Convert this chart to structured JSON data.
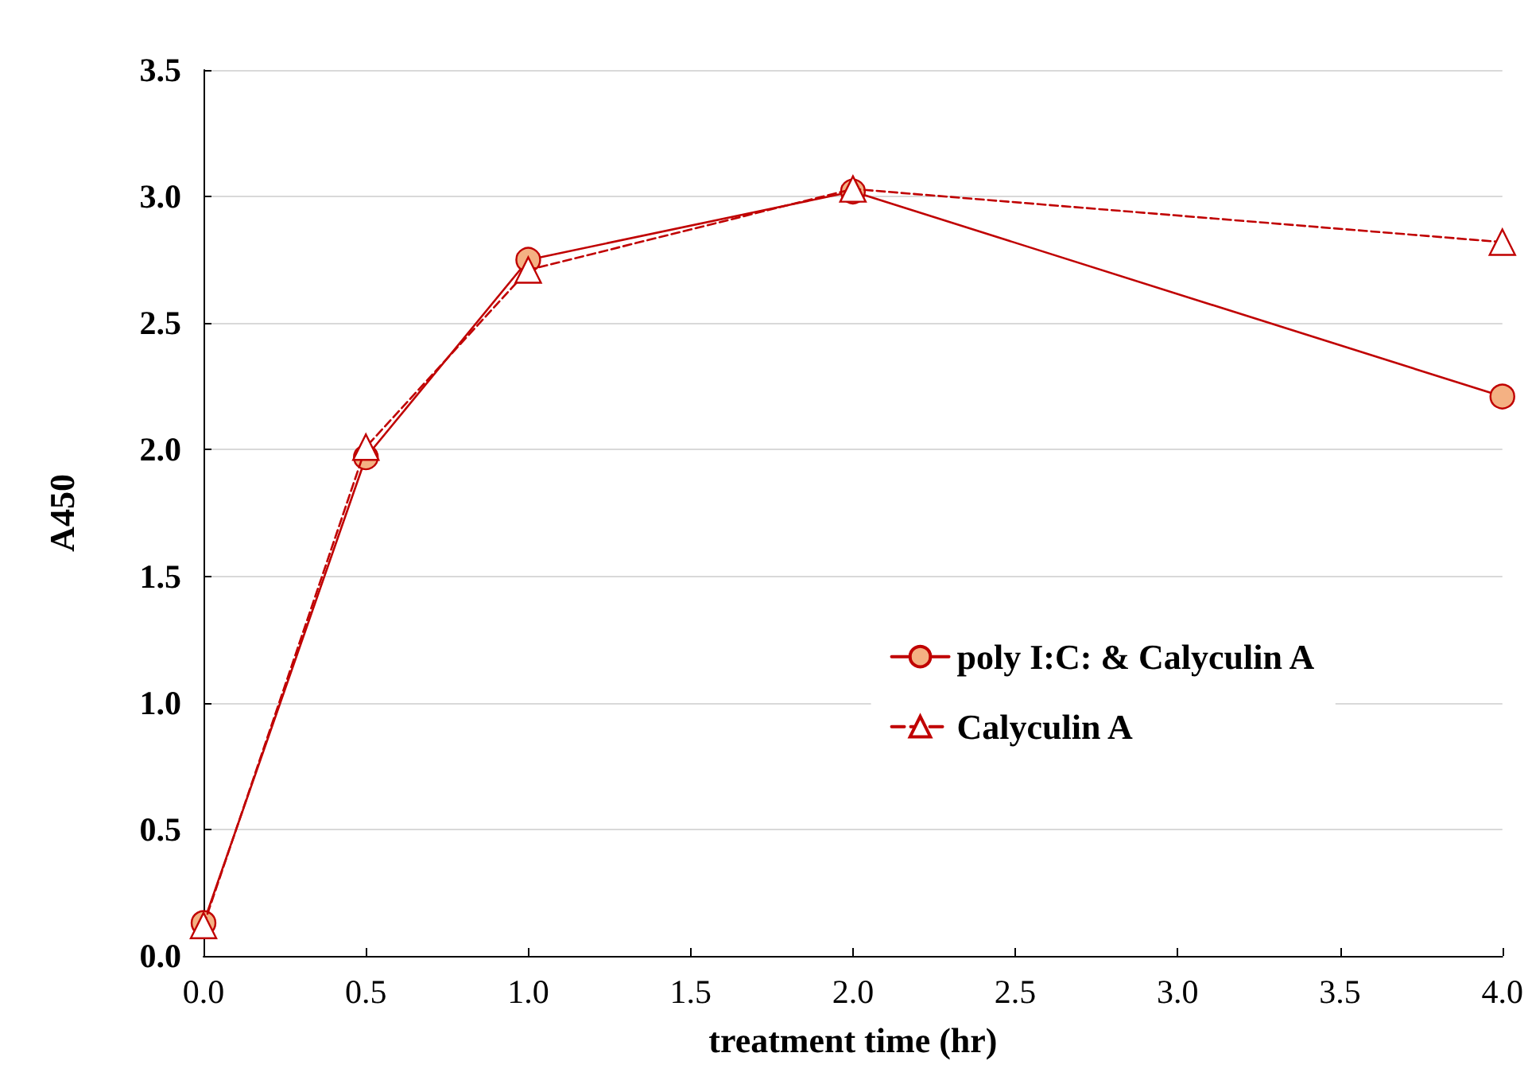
{
  "chart_data": {
    "type": "line",
    "xlabel": "treatment time (hr)",
    "ylabel": "A450",
    "x": [
      0,
      0.5,
      1,
      2,
      4
    ],
    "series": [
      {
        "name": "poly I:C: & Calyculin A",
        "color": "#c00000",
        "marker": "circle",
        "line_style": "solid",
        "values": [
          0.13,
          1.97,
          2.75,
          3.02,
          2.21
        ]
      },
      {
        "name": "Calyculin A",
        "color": "#c00000",
        "marker": "triangle",
        "line_style": "dashed",
        "values": [
          0.12,
          2.01,
          2.71,
          3.03,
          2.82
        ]
      }
    ],
    "xlim": [
      0,
      4
    ],
    "xticks": [
      {
        "value": 0,
        "label": "0.0"
      },
      {
        "value": 0.5,
        "label": "0.5"
      },
      {
        "value": 1,
        "label": "1.0"
      },
      {
        "value": 1.5,
        "label": "1.5"
      },
      {
        "value": 2,
        "label": "2.0"
      },
      {
        "value": 2.5,
        "label": "2.5"
      },
      {
        "value": 3,
        "label": "3.0"
      },
      {
        "value": 3.5,
        "label": "3.5"
      },
      {
        "value": 4,
        "label": "4.0"
      }
    ],
    "ylim": [
      0,
      3.5
    ],
    "yticks": [
      {
        "value": 0,
        "label": "0.0"
      },
      {
        "value": 0.5,
        "label": "0.5"
      },
      {
        "value": 1,
        "label": "1.0"
      },
      {
        "value": 1.5,
        "label": "1.5"
      },
      {
        "value": 2,
        "label": "2.0"
      },
      {
        "value": 2.5,
        "label": "2.5"
      },
      {
        "value": 3,
        "label": "3.0"
      },
      {
        "value": 3.5,
        "label": "3.5"
      }
    ],
    "grid": "y",
    "legend": "right"
  }
}
